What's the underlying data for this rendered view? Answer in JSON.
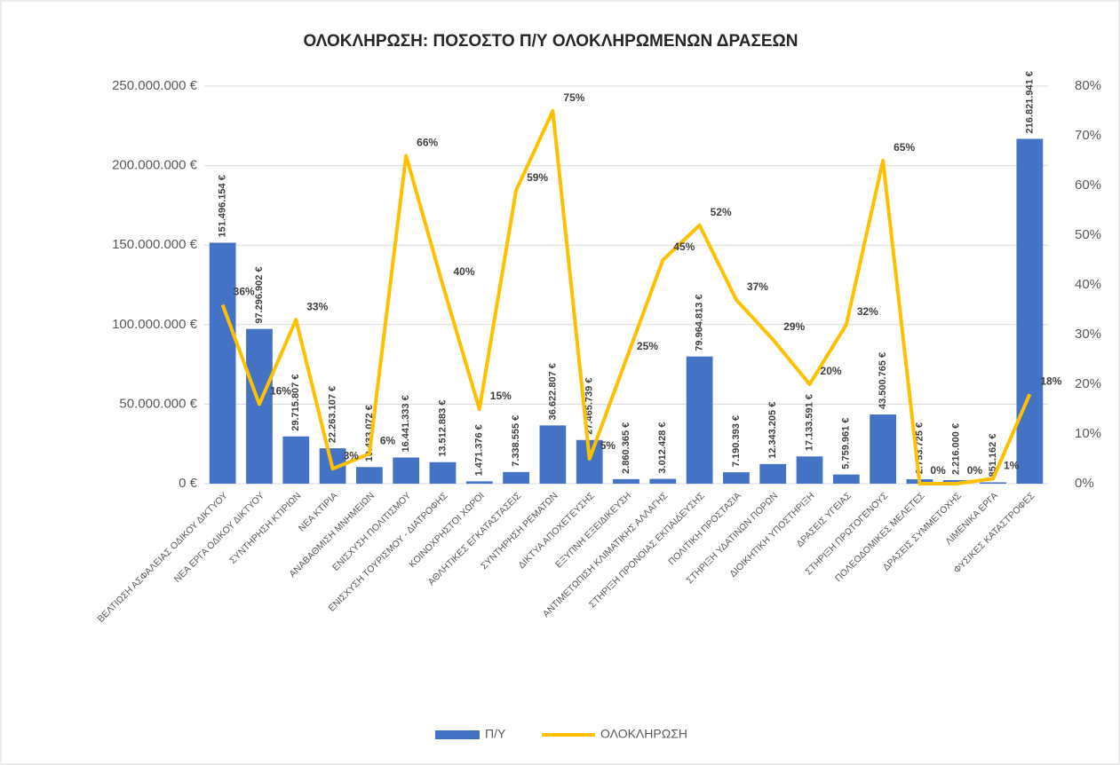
{
  "chart_data": {
    "type": "bar",
    "title": "ΟΛΟΚΛΗΡΩΣΗ: ΠΟΣΟΣΤΟ Π/Υ ΟΛΟΚΛΗΡΩΜΕΝΩΝ ΔΡΑΣΕΩΝ",
    "categories": [
      "ΒΕΛΤΙΩΣΗ ΑΣΦΑΛΕΙΑΣ ΟΔΙΚΟΥ ΔΙΚΤΥΟΥ",
      "ΝΕΑ ΕΡΓΑ ΟΔΙΚΟΥ ΔΙΚΤΥΟΥ",
      "ΣΥΝΤΗΡΗΣΗ ΚΤΙΡΙΩΝ",
      "ΝΕΑ ΚΤΙΡΙΑ",
      "ΑΝΑΒΑΘΜΙΣΗ ΜΝΗΜΕΙΩΝ",
      "ΕΝΙΣΧΥΣΗ ΠΟΛΙΤΙΣΜΟΥ",
      "ΕΝΙΣΧΥΣΗ ΤΟΥΡΙΣΜΟΥ - ΔΙΑΤΡΟΦΗΣ",
      "ΚΟΙΝΟΧΡΗΣΤΟΙ ΧΩΡΟΙ",
      "ΑΘΛΗΤΙΚΕΣ ΕΓΚΑΤΑΣΤΑΣΕΙΣ",
      "ΣΥΝΤΗΡΗΣΗ ΡΕΜΑΤΩΝ",
      "ΔΙΚΤΥΑ ΑΠΟΧΕΤΕΥΣΗΣ",
      "ΕΞΥΠΝΗ ΕΞΕΙΔΙΚΕΥΣΗ",
      "ΑΝΤΙΜΕΤΩΠΙΣΗ ΚΛΙΜΑΤΙΚΗΣ ΑΛΛΑΓΗΣ",
      "ΣΤΗΡΙΞΗ ΠΡΟΝΟΙΑΣ ΕΚΠΑΙΔΕΥΣΗΣ",
      "ΠΟΛΙΤΙΚΗ ΠΡΟΣΤΑΣΙΑ",
      "ΣΤΗΡΙΞΗ ΥΔΑΤΙΝΩΝ ΠΟΡΩΝ",
      "ΔΙΟΙΚΗΤΙΚΗ ΥΠΟΣΤΗΡΙΞΗ",
      "ΔΡΑΣΕΙΣ ΥΓΕΙΑΣ",
      "ΣΤΗΡΙΞΗ ΠΡΩΤΟΓΕΝΟΥΣ",
      "ΠΟΛΕΟΔΟΜΙΚΕΣ ΜΕΛΕΤΕΣ",
      "ΔΡΑΣΕΙΣ ΣΥΜΜΕΤΟΧΗΣ",
      "ΛΙΜΕΝΙΚΑ ΕΡΓΑ",
      "ΦΥΣΙΚΕΣ ΚΑΤΑΣΤΡΟΦΕΣ"
    ],
    "series": [
      {
        "name": "Π/Υ",
        "type": "bar",
        "color": "#4472c4",
        "values": [
          151496154,
          97296902,
          29715807,
          22263107,
          10433072,
          16441333,
          13512883,
          1471376,
          7338555,
          36622807,
          27465739,
          2860365,
          3012428,
          79964813,
          7190393,
          12343205,
          17133591,
          5759961,
          43500765,
          2753725,
          2216000,
          851162,
          216821941
        ],
        "value_labels": [
          "151.496.154 €",
          "97.296.902 €",
          "29.715.807 €",
          "22.263.107 €",
          "10.433.072 €",
          "16.441.333 €",
          "13.512.883 €",
          "1.471.376 €",
          "7.338.555 €",
          "36.622.807 €",
          "27.465.739 €",
          "2.860.365 €",
          "3.012.428 €",
          "79.964.813 €",
          "7.190.393 €",
          "12.343.205 €",
          "17.133.591 €",
          "5.759.961 €",
          "43.500.765 €",
          "2.753.725 €",
          "2.216.000 €",
          "851.162 €",
          "216.821.941 €"
        ]
      },
      {
        "name": "ΟΛΟΚΛΗΡΩΣΗ",
        "type": "line",
        "axis": "y2",
        "color": "#ffc000",
        "values": [
          36,
          16,
          33,
          3,
          6,
          66,
          40,
          15,
          59,
          75,
          5,
          25,
          45,
          52,
          37,
          29,
          20,
          32,
          65,
          0,
          0,
          1,
          18
        ],
        "value_labels": [
          "36%",
          "16%",
          "33%",
          "3%",
          "6%",
          "66%",
          "40%",
          "15%",
          "59%",
          "75%",
          "5%",
          "25%",
          "45%",
          "52%",
          "37%",
          "29%",
          "20%",
          "32%",
          "65%",
          "0%",
          "0%",
          "1%",
          "18%"
        ]
      }
    ],
    "ylim": [
      0,
      250000000
    ],
    "yticks": [
      {
        "value": 0,
        "label": "0 €"
      },
      {
        "value": 50000000,
        "label": "50.000.000 €"
      },
      {
        "value": 100000000,
        "label": "100.000.000 €"
      },
      {
        "value": 150000000,
        "label": "150.000.000 €"
      },
      {
        "value": 200000000,
        "label": "200.000.000 €"
      },
      {
        "value": 250000000,
        "label": "250.000.000 €"
      }
    ],
    "y2lim": [
      0,
      80
    ],
    "y2ticks": [
      {
        "value": 0,
        "label": "0%"
      },
      {
        "value": 10,
        "label": "10%"
      },
      {
        "value": 20,
        "label": "20%"
      },
      {
        "value": 30,
        "label": "30%"
      },
      {
        "value": 40,
        "label": "40%"
      },
      {
        "value": 50,
        "label": "50%"
      },
      {
        "value": 60,
        "label": "60%"
      },
      {
        "value": 70,
        "label": "70%"
      },
      {
        "value": 80,
        "label": "80%"
      }
    ],
    "grid": true,
    "legend": "bottom"
  }
}
